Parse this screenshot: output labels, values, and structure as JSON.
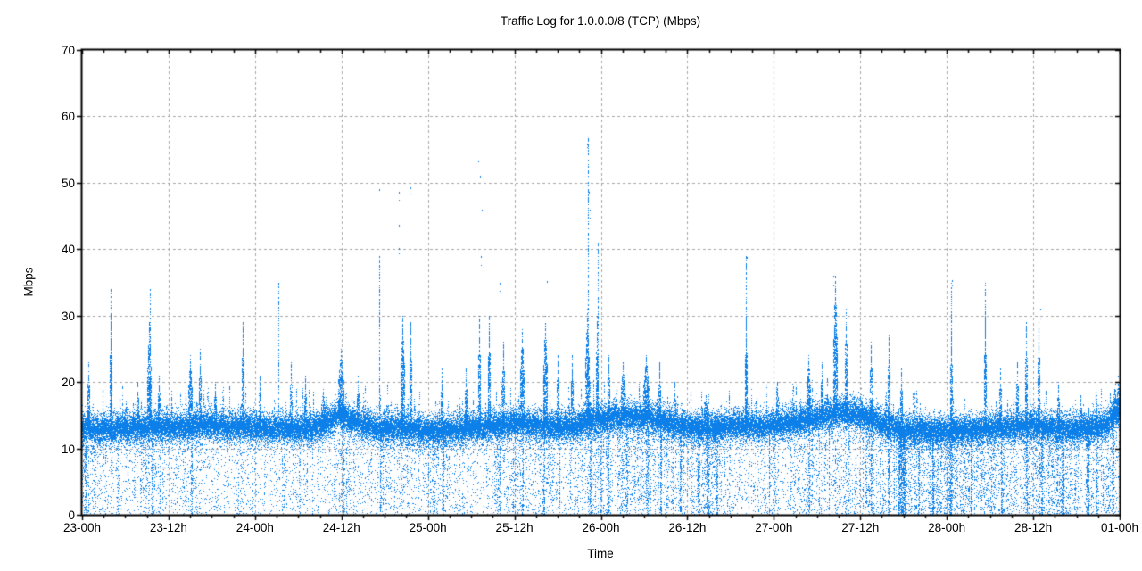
{
  "chart_data": {
    "type": "scatter",
    "title": "Traffic Log for 1.0.0.0/8 (TCP) (Mbps)",
    "xlabel": "Time",
    "ylabel": "Mbps",
    "x_unit": "hours since 23-00h",
    "xlim": [
      0,
      144
    ],
    "ylim": [
      0,
      70
    ],
    "grid": "on",
    "legend": "none",
    "point_color": "#0c7fe8",
    "grid_color": "#a6a6a6",
    "axis_color": "#000000",
    "background": "#ffffff",
    "xticks": [
      {
        "hour": 0,
        "label": "23-00h"
      },
      {
        "hour": 12,
        "label": "23-12h"
      },
      {
        "hour": 24,
        "label": "24-00h"
      },
      {
        "hour": 36,
        "label": "24-12h"
      },
      {
        "hour": 48,
        "label": "25-00h"
      },
      {
        "hour": 60,
        "label": "25-12h"
      },
      {
        "hour": 72,
        "label": "26-00h"
      },
      {
        "hour": 84,
        "label": "26-12h"
      },
      {
        "hour": 96,
        "label": "27-00h"
      },
      {
        "hour": 108,
        "label": "27-12h"
      },
      {
        "hour": 120,
        "label": "28-00h"
      },
      {
        "hour": 132,
        "label": "28-12h"
      },
      {
        "hour": 144,
        "label": "01-00h"
      }
    ],
    "minor_xtick_hours": 3,
    "yticks": [
      0,
      10,
      20,
      30,
      40,
      50,
      60,
      70
    ],
    "seed": 42,
    "band": {
      "description": "dense traffic band ~11-16 Mbps across whole window",
      "core_halfwidth_mbps": 1.4,
      "mean_keyframes": [
        [
          0,
          13.4
        ],
        [
          2,
          12.9
        ],
        [
          4,
          13.0
        ],
        [
          6,
          13.0
        ],
        [
          8,
          13.2
        ],
        [
          10,
          13.5
        ],
        [
          12,
          13.4
        ],
        [
          14,
          13.3
        ],
        [
          16,
          13.5
        ],
        [
          18,
          13.6
        ],
        [
          20,
          13.4
        ],
        [
          22,
          13.5
        ],
        [
          24,
          13.3
        ],
        [
          26,
          13.0
        ],
        [
          28,
          13.0
        ],
        [
          30,
          12.9
        ],
        [
          32,
          13.1
        ],
        [
          34,
          13.8
        ],
        [
          35.5,
          15.2
        ],
        [
          36.5,
          14.9
        ],
        [
          38,
          13.8
        ],
        [
          40,
          13.3
        ],
        [
          42,
          13.1
        ],
        [
          44,
          13.3
        ],
        [
          46,
          12.9
        ],
        [
          48,
          12.7
        ],
        [
          50,
          12.8
        ],
        [
          52,
          13.0
        ],
        [
          54,
          13.1
        ],
        [
          56,
          13.3
        ],
        [
          58,
          13.5
        ],
        [
          60,
          14.0
        ],
        [
          62,
          13.7
        ],
        [
          64,
          13.4
        ],
        [
          66,
          13.2
        ],
        [
          68,
          13.4
        ],
        [
          70,
          14.0
        ],
        [
          72,
          14.4
        ],
        [
          74,
          14.7
        ],
        [
          76,
          14.9
        ],
        [
          78,
          14.7
        ],
        [
          80,
          14.3
        ],
        [
          82,
          13.9
        ],
        [
          84,
          13.4
        ],
        [
          86,
          13.1
        ],
        [
          88,
          13.3
        ],
        [
          90,
          13.5
        ],
        [
          92,
          13.6
        ],
        [
          94,
          13.4
        ],
        [
          96,
          13.6
        ],
        [
          98,
          13.9
        ],
        [
          100,
          14.2
        ],
        [
          102,
          14.8
        ],
        [
          104,
          15.3
        ],
        [
          106,
          15.5
        ],
        [
          108,
          15.2
        ],
        [
          110,
          14.2
        ],
        [
          112,
          13.3
        ],
        [
          114,
          12.7
        ],
        [
          116,
          12.9
        ],
        [
          118,
          12.7
        ],
        [
          120,
          12.5
        ],
        [
          122,
          12.8
        ],
        [
          124,
          13.0
        ],
        [
          126,
          13.1
        ],
        [
          128,
          13.3
        ],
        [
          130,
          13.5
        ],
        [
          132,
          13.6
        ],
        [
          134,
          13.1
        ],
        [
          136,
          13.0
        ],
        [
          138,
          13.2
        ],
        [
          140,
          13.3
        ],
        [
          142,
          13.9
        ],
        [
          143.5,
          15.3
        ],
        [
          144,
          15.8
        ]
      ]
    },
    "low_scatter": {
      "description": "sparse vertical-striped points from band down to 0",
      "base_weight": 0.4,
      "heavy_regions": [
        [
          0,
          2,
          0.7
        ],
        [
          8,
          11,
          0.7
        ],
        [
          14,
          17,
          0.55
        ],
        [
          21,
          24,
          0.5
        ],
        [
          28,
          31,
          0.5
        ],
        [
          35,
          37,
          0.7
        ],
        [
          40,
          46,
          0.6
        ],
        [
          48,
          52,
          0.6
        ],
        [
          56,
          66,
          0.65
        ],
        [
          68,
          90,
          0.8
        ],
        [
          92,
          97,
          0.55
        ],
        [
          98,
          103,
          0.7
        ],
        [
          104,
          112,
          0.75
        ],
        [
          112,
          122,
          0.92
        ],
        [
          122,
          144,
          0.85
        ]
      ]
    },
    "drop_columns": [
      [
        0.5,
        2,
        0.5
      ],
      [
        9.8,
        2,
        0.6
      ],
      [
        15.2,
        2,
        0.5
      ],
      [
        36.3,
        2,
        0.6
      ],
      [
        41.3,
        1,
        0.5
      ],
      [
        50.1,
        2,
        0.6
      ],
      [
        57.9,
        1,
        0.5
      ],
      [
        61.2,
        2,
        0.5
      ],
      [
        64.1,
        2,
        0.6
      ],
      [
        66.3,
        1,
        0.5
      ],
      [
        70.6,
        3,
        0.8
      ],
      [
        71.9,
        2,
        0.7
      ],
      [
        73.1,
        2,
        0.8
      ],
      [
        75.6,
        2,
        0.6
      ],
      [
        78.4,
        3,
        0.8
      ],
      [
        80.4,
        2,
        0.7
      ],
      [
        83.1,
        2,
        0.6
      ],
      [
        85.6,
        3,
        0.7
      ],
      [
        86.8,
        3,
        0.7
      ],
      [
        88.2,
        2,
        0.6
      ],
      [
        95.3,
        1,
        0.4
      ],
      [
        100.9,
        2,
        0.6
      ],
      [
        103.6,
        1,
        0.5
      ],
      [
        109.6,
        2,
        0.6
      ],
      [
        111.9,
        2,
        0.7
      ],
      [
        113.8,
        8,
        0.95
      ],
      [
        116.2,
        2,
        0.7
      ],
      [
        118.1,
        2,
        0.6
      ],
      [
        120.6,
        3,
        0.7
      ],
      [
        123.4,
        2,
        0.5
      ],
      [
        127.6,
        2,
        0.6
      ],
      [
        131.1,
        2,
        0.7
      ],
      [
        133.2,
        2,
        0.6
      ],
      [
        136.1,
        3,
        0.7
      ],
      [
        139.6,
        3,
        0.8
      ],
      [
        140.8,
        2,
        0.7
      ],
      [
        143.1,
        2,
        0.6
      ]
    ],
    "spikes": [
      [
        0.9,
        23,
        1,
        "d"
      ],
      [
        4.0,
        30,
        1,
        "d"
      ],
      [
        4.0,
        34,
        1,
        "s"
      ],
      [
        6.1,
        17,
        2,
        "d"
      ],
      [
        7.7,
        20,
        1,
        "d"
      ],
      [
        9.3,
        29,
        2,
        "d"
      ],
      [
        9.4,
        34,
        1,
        "s"
      ],
      [
        10.6,
        21,
        1,
        "d"
      ],
      [
        15.0,
        24,
        2,
        "d"
      ],
      [
        16.3,
        25,
        1,
        "d"
      ],
      [
        18.5,
        20,
        1,
        "d"
      ],
      [
        22.3,
        29,
        1,
        "d"
      ],
      [
        24.7,
        21,
        1,
        "d"
      ],
      [
        27.2,
        35,
        1,
        "s"
      ],
      [
        29.0,
        23,
        1,
        "d"
      ],
      [
        30.9,
        21,
        1,
        "d"
      ],
      [
        33.4,
        19,
        2,
        "d"
      ],
      [
        35.9,
        25,
        3,
        "d"
      ],
      [
        38.3,
        21,
        1,
        "d"
      ],
      [
        41.2,
        39,
        1,
        "s"
      ],
      [
        44.5,
        30,
        2,
        "d"
      ],
      [
        45.6,
        29,
        1,
        "d"
      ],
      [
        49.9,
        22,
        1,
        "d"
      ],
      [
        53.2,
        22,
        1,
        "d"
      ],
      [
        55.1,
        30,
        1,
        "d"
      ],
      [
        56.5,
        30,
        1,
        "d"
      ],
      [
        58.5,
        26,
        1,
        "d"
      ],
      [
        61.0,
        28,
        2,
        "d"
      ],
      [
        64.3,
        30,
        2,
        "d"
      ],
      [
        66.0,
        24,
        1,
        "d"
      ],
      [
        68.0,
        24,
        1,
        "d"
      ],
      [
        70.1,
        31,
        2,
        "d"
      ],
      [
        70.2,
        57,
        1,
        "s"
      ],
      [
        71.5,
        30,
        1,
        "d"
      ],
      [
        71.6,
        41,
        1,
        "s"
      ],
      [
        73.0,
        24,
        1,
        "d"
      ],
      [
        75.0,
        23,
        2,
        "d"
      ],
      [
        78.3,
        24,
        3,
        "d"
      ],
      [
        80.1,
        23,
        1,
        "d"
      ],
      [
        82.2,
        20,
        1,
        "d"
      ],
      [
        86.6,
        18,
        2,
        "d"
      ],
      [
        92.1,
        30,
        1,
        "d"
      ],
      [
        92.1,
        39,
        1,
        "s"
      ],
      [
        96.4,
        20,
        1,
        "d"
      ],
      [
        100.8,
        24,
        2,
        "d"
      ],
      [
        102.6,
        23,
        1,
        "d"
      ],
      [
        104.5,
        36,
        2,
        "d"
      ],
      [
        106.0,
        31,
        1,
        "d"
      ],
      [
        109.4,
        26,
        1,
        "d"
      ],
      [
        111.9,
        27,
        1,
        "d"
      ],
      [
        113.7,
        22,
        1,
        "d"
      ],
      [
        120.6,
        28,
        1,
        "d"
      ],
      [
        120.6,
        35,
        1,
        "s"
      ],
      [
        125.3,
        30,
        1,
        "d"
      ],
      [
        125.3,
        35,
        1,
        "s"
      ],
      [
        127.4,
        22,
        1,
        "d"
      ],
      [
        129.8,
        23,
        1,
        "d"
      ],
      [
        131.0,
        29,
        1,
        "d"
      ],
      [
        132.7,
        29,
        1,
        "d"
      ],
      [
        135.4,
        20,
        1,
        "d"
      ],
      [
        138.5,
        18,
        1,
        "d"
      ],
      [
        143.3,
        19,
        2,
        "d"
      ],
      [
        143.8,
        21,
        1,
        "d"
      ]
    ],
    "outliers": [
      [
        43.9,
        48.7
      ],
      [
        43.9,
        43.7
      ],
      [
        45.6,
        49.3
      ],
      [
        44.0,
        40.2
      ],
      [
        41.2,
        49.0
      ],
      [
        55.0,
        53.4
      ],
      [
        55.2,
        51.0
      ],
      [
        55.5,
        46.0
      ],
      [
        55.3,
        38.9
      ],
      [
        58.0,
        35.0
      ],
      [
        64.5,
        35.2
      ],
      [
        70.1,
        55.9
      ],
      [
        70.2,
        52.5
      ],
      [
        70.3,
        48.6
      ],
      [
        70.5,
        46.0
      ],
      [
        92.2,
        38.8
      ],
      [
        104.3,
        36.0
      ],
      [
        120.7,
        35.3
      ],
      [
        27.3,
        32.0
      ],
      [
        133.0,
        31.0
      ]
    ]
  }
}
